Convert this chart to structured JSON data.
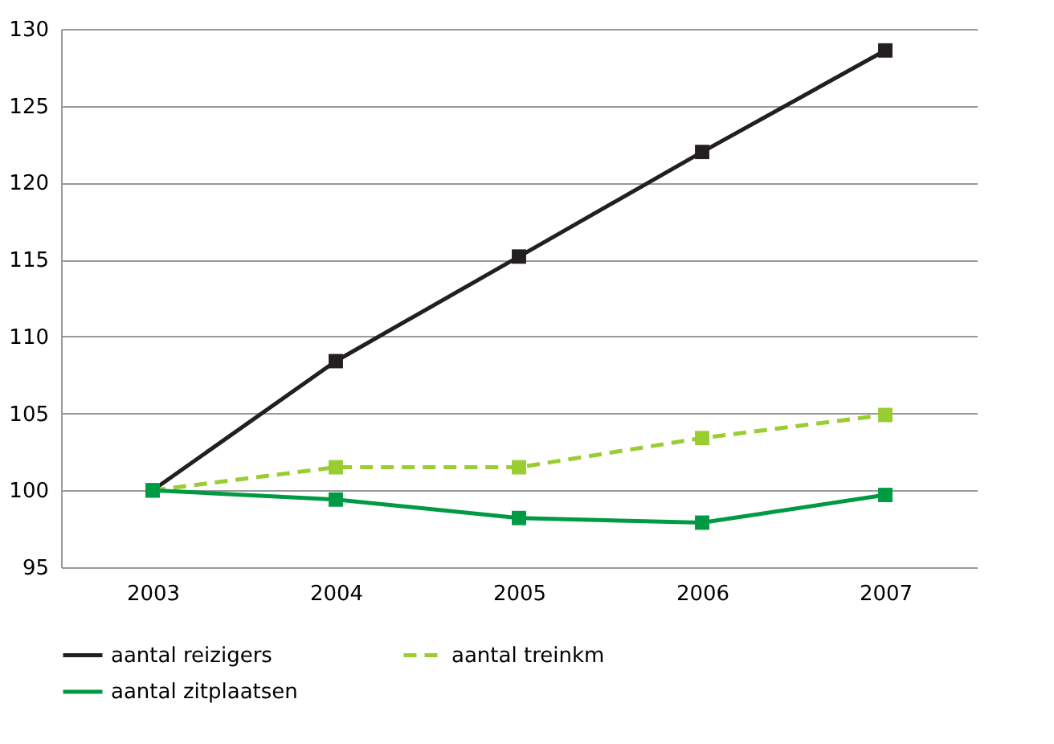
{
  "chart_data": {
    "type": "line",
    "categories": [
      "2003",
      "2004",
      "2005",
      "2006",
      "2007"
    ],
    "series": [
      {
        "name": "aantal reizigers",
        "color": "#231f20",
        "line_style": "solid",
        "values": [
          100,
          108.4,
          115.2,
          122.0,
          128.6
        ]
      },
      {
        "name": "aantal treinkm",
        "color": "#9acd32",
        "line_style": "dashed",
        "values": [
          100,
          101.5,
          101.5,
          103.4,
          104.9
        ]
      },
      {
        "name": "aantal zitplaatsen",
        "color": "#009a44",
        "line_style": "solid",
        "values": [
          100,
          99.4,
          98.2,
          97.9,
          99.7
        ]
      }
    ],
    "ylim": [
      95,
      130
    ],
    "yticks": [
      95,
      100,
      105,
      110,
      115,
      120,
      125,
      130
    ],
    "grid": "y",
    "legend": "bottom",
    "marker": "square"
  }
}
